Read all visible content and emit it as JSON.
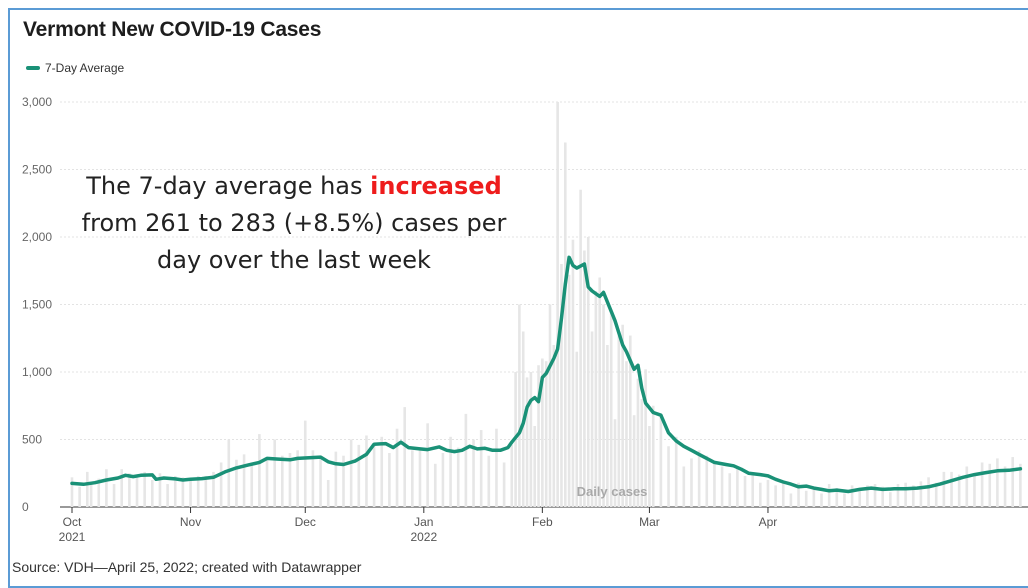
{
  "chart_data": {
    "type": "bar",
    "title": "Vermont New COVID-19 Cases",
    "legend": [
      {
        "name": "7-Day Average",
        "color": "#1a9177"
      }
    ],
    "bar_label": "Daily cases",
    "annotation": {
      "before": "The 7-day average has ",
      "highlight": "increased",
      "after_line1": "",
      "line2": "from 261 to 283 (+8.5%) cases per",
      "line3": "day over the last week",
      "highlight_color": "#ee1c1c"
    },
    "ylim": [
      0,
      3000
    ],
    "yticks": [
      "0",
      "500",
      "1,000",
      "1,500",
      "2,000",
      "2,500",
      "3,000"
    ],
    "ytick_values": [
      0,
      500,
      1000,
      1500,
      2000,
      2500,
      3000
    ],
    "xticks": [
      {
        "day": 0,
        "label": "Oct",
        "sub": "2021"
      },
      {
        "day": 31,
        "label": "Nov",
        "sub": ""
      },
      {
        "day": 61,
        "label": "Dec",
        "sub": ""
      },
      {
        "day": 92,
        "label": "Jan",
        "sub": "2022"
      },
      {
        "day": 123,
        "label": "Feb",
        "sub": ""
      },
      {
        "day": 151,
        "label": "Mar",
        "sub": ""
      },
      {
        "day": 182,
        "label": "Apr",
        "sub": ""
      }
    ],
    "x_start": "2021-10-01",
    "x_end": "2022-04-25",
    "grid": true,
    "series": [
      {
        "name": "7-Day Average",
        "color": "#1a9177",
        "points": [
          [
            0,
            175
          ],
          [
            3,
            168
          ],
          [
            6,
            180
          ],
          [
            9,
            200
          ],
          [
            12,
            215
          ],
          [
            14,
            235
          ],
          [
            16,
            225
          ],
          [
            18,
            235
          ],
          [
            21,
            238
          ],
          [
            22,
            205
          ],
          [
            24,
            215
          ],
          [
            27,
            208
          ],
          [
            29,
            200
          ],
          [
            31,
            205
          ],
          [
            34,
            210
          ],
          [
            37,
            220
          ],
          [
            40,
            260
          ],
          [
            43,
            290
          ],
          [
            46,
            310
          ],
          [
            49,
            330
          ],
          [
            51,
            360
          ],
          [
            54,
            355
          ],
          [
            57,
            350
          ],
          [
            59,
            360
          ],
          [
            62,
            365
          ],
          [
            65,
            370
          ],
          [
            67,
            335
          ],
          [
            69,
            320
          ],
          [
            71,
            315
          ],
          [
            74,
            340
          ],
          [
            77,
            390
          ],
          [
            79,
            465
          ],
          [
            82,
            470
          ],
          [
            84,
            440
          ],
          [
            86,
            480
          ],
          [
            88,
            440
          ],
          [
            91,
            430
          ],
          [
            93,
            425
          ],
          [
            96,
            445
          ],
          [
            98,
            420
          ],
          [
            100,
            410
          ],
          [
            102,
            420
          ],
          [
            104,
            450
          ],
          [
            106,
            430
          ],
          [
            108,
            435
          ],
          [
            110,
            420
          ],
          [
            112,
            420
          ],
          [
            114,
            440
          ],
          [
            115,
            480
          ],
          [
            117,
            550
          ],
          [
            118,
            620
          ],
          [
            119,
            740
          ],
          [
            120,
            790
          ],
          [
            121,
            810
          ],
          [
            122,
            780
          ],
          [
            123,
            960
          ],
          [
            124,
            990
          ],
          [
            126,
            1100
          ],
          [
            127,
            1170
          ],
          [
            128,
            1400
          ],
          [
            129,
            1650
          ],
          [
            130,
            1850
          ],
          [
            131,
            1790
          ],
          [
            132,
            1770
          ],
          [
            134,
            1800
          ],
          [
            135,
            1630
          ],
          [
            136,
            1600
          ],
          [
            138,
            1560
          ],
          [
            139,
            1590
          ],
          [
            141,
            1450
          ],
          [
            142,
            1380
          ],
          [
            144,
            1200
          ],
          [
            145,
            1150
          ],
          [
            147,
            1020
          ],
          [
            148,
            1050
          ],
          [
            149,
            880
          ],
          [
            150,
            770
          ],
          [
            152,
            700
          ],
          [
            154,
            680
          ],
          [
            156,
            550
          ],
          [
            158,
            490
          ],
          [
            160,
            450
          ],
          [
            162,
            420
          ],
          [
            164,
            390
          ],
          [
            166,
            360
          ],
          [
            168,
            330
          ],
          [
            171,
            315
          ],
          [
            173,
            305
          ],
          [
            175,
            280
          ],
          [
            177,
            250
          ],
          [
            180,
            240
          ],
          [
            182,
            230
          ],
          [
            184,
            205
          ],
          [
            186,
            185
          ],
          [
            188,
            170
          ],
          [
            190,
            150
          ],
          [
            192,
            155
          ],
          [
            194,
            140
          ],
          [
            196,
            130
          ],
          [
            198,
            120
          ],
          [
            200,
            125
          ],
          [
            203,
            115
          ],
          [
            206,
            130
          ],
          [
            209,
            140
          ],
          [
            212,
            130
          ],
          [
            215,
            135
          ],
          [
            218,
            135
          ],
          [
            221,
            140
          ],
          [
            224,
            150
          ],
          [
            227,
            170
          ],
          [
            230,
            195
          ],
          [
            233,
            220
          ],
          [
            236,
            240
          ],
          [
            239,
            255
          ],
          [
            242,
            268
          ],
          [
            245,
            272
          ],
          [
            248,
            283
          ]
        ]
      }
    ],
    "bars": [
      {
        "day": 0,
        "value": 220
      },
      {
        "day": 2,
        "value": 150
      },
      {
        "day": 4,
        "value": 260
      },
      {
        "day": 5,
        "value": 180
      },
      {
        "day": 7,
        "value": 210
      },
      {
        "day": 9,
        "value": 280
      },
      {
        "day": 11,
        "value": 170
      },
      {
        "day": 13,
        "value": 280
      },
      {
        "day": 15,
        "value": 250
      },
      {
        "day": 17,
        "value": 240
      },
      {
        "day": 19,
        "value": 260
      },
      {
        "day": 21,
        "value": 200
      },
      {
        "day": 23,
        "value": 250
      },
      {
        "day": 25,
        "value": 170
      },
      {
        "day": 27,
        "value": 230
      },
      {
        "day": 29,
        "value": 220
      },
      {
        "day": 31,
        "value": 210
      },
      {
        "day": 33,
        "value": 230
      },
      {
        "day": 35,
        "value": 230
      },
      {
        "day": 37,
        "value": 260
      },
      {
        "day": 39,
        "value": 330
      },
      {
        "day": 41,
        "value": 500
      },
      {
        "day": 43,
        "value": 350
      },
      {
        "day": 45,
        "value": 390
      },
      {
        "day": 47,
        "value": 330
      },
      {
        "day": 49,
        "value": 540
      },
      {
        "day": 51,
        "value": 360
      },
      {
        "day": 53,
        "value": 500
      },
      {
        "day": 55,
        "value": 380
      },
      {
        "day": 57,
        "value": 400
      },
      {
        "day": 59,
        "value": 420
      },
      {
        "day": 61,
        "value": 640
      },
      {
        "day": 63,
        "value": 420
      },
      {
        "day": 65,
        "value": 380
      },
      {
        "day": 67,
        "value": 200
      },
      {
        "day": 69,
        "value": 410
      },
      {
        "day": 71,
        "value": 380
      },
      {
        "day": 73,
        "value": 500
      },
      {
        "day": 75,
        "value": 460
      },
      {
        "day": 77,
        "value": 530
      },
      {
        "day": 79,
        "value": 470
      },
      {
        "day": 81,
        "value": 520
      },
      {
        "day": 83,
        "value": 400
      },
      {
        "day": 85,
        "value": 580
      },
      {
        "day": 87,
        "value": 740
      },
      {
        "day": 89,
        "value": 420
      },
      {
        "day": 91,
        "value": 430
      },
      {
        "day": 93,
        "value": 620
      },
      {
        "day": 95,
        "value": 320
      },
      {
        "day": 97,
        "value": 400
      },
      {
        "day": 99,
        "value": 520
      },
      {
        "day": 101,
        "value": 440
      },
      {
        "day": 103,
        "value": 690
      },
      {
        "day": 105,
        "value": 500
      },
      {
        "day": 107,
        "value": 570
      },
      {
        "day": 109,
        "value": 380
      },
      {
        "day": 111,
        "value": 580
      },
      {
        "day": 113,
        "value": 330
      },
      {
        "day": 115,
        "value": 460
      },
      {
        "day": 116,
        "value": 1000
      },
      {
        "day": 117,
        "value": 1500
      },
      {
        "day": 118,
        "value": 1300
      },
      {
        "day": 119,
        "value": 960
      },
      {
        "day": 120,
        "value": 1000
      },
      {
        "day": 121,
        "value": 600
      },
      {
        "day": 122,
        "value": 1050
      },
      {
        "day": 123,
        "value": 1100
      },
      {
        "day": 124,
        "value": 1080
      },
      {
        "day": 125,
        "value": 1500
      },
      {
        "day": 126,
        "value": 1200
      },
      {
        "day": 127,
        "value": 3000
      },
      {
        "day": 128,
        "value": 1800
      },
      {
        "day": 129,
        "value": 2700
      },
      {
        "day": 130,
        "value": 1720
      },
      {
        "day": 131,
        "value": 1980
      },
      {
        "day": 132,
        "value": 1150
      },
      {
        "day": 133,
        "value": 2350
      },
      {
        "day": 134,
        "value": 1900
      },
      {
        "day": 135,
        "value": 2000
      },
      {
        "day": 136,
        "value": 1300
      },
      {
        "day": 137,
        "value": 1600
      },
      {
        "day": 138,
        "value": 1700
      },
      {
        "day": 139,
        "value": 1500
      },
      {
        "day": 140,
        "value": 1200
      },
      {
        "day": 141,
        "value": 1450
      },
      {
        "day": 142,
        "value": 650
      },
      {
        "day": 143,
        "value": 1270
      },
      {
        "day": 144,
        "value": 1350
      },
      {
        "day": 145,
        "value": 1080
      },
      {
        "day": 146,
        "value": 1270
      },
      {
        "day": 147,
        "value": 680
      },
      {
        "day": 148,
        "value": 950
      },
      {
        "day": 149,
        "value": 800
      },
      {
        "day": 150,
        "value": 1020
      },
      {
        "day": 151,
        "value": 600
      },
      {
        "day": 152,
        "value": 750
      },
      {
        "day": 154,
        "value": 670
      },
      {
        "day": 156,
        "value": 450
      },
      {
        "day": 158,
        "value": 520
      },
      {
        "day": 160,
        "value": 300
      },
      {
        "day": 162,
        "value": 360
      },
      {
        "day": 164,
        "value": 420
      },
      {
        "day": 166,
        "value": 380
      },
      {
        "day": 168,
        "value": 330
      },
      {
        "day": 170,
        "value": 300
      },
      {
        "day": 172,
        "value": 250
      },
      {
        "day": 174,
        "value": 300
      },
      {
        "day": 176,
        "value": 230
      },
      {
        "day": 178,
        "value": 250
      },
      {
        "day": 180,
        "value": 180
      },
      {
        "day": 182,
        "value": 200
      },
      {
        "day": 184,
        "value": 160
      },
      {
        "day": 186,
        "value": 190
      },
      {
        "day": 188,
        "value": 100
      },
      {
        "day": 190,
        "value": 180
      },
      {
        "day": 192,
        "value": 120
      },
      {
        "day": 194,
        "value": 150
      },
      {
        "day": 196,
        "value": 100
      },
      {
        "day": 198,
        "value": 170
      },
      {
        "day": 200,
        "value": 140
      },
      {
        "day": 202,
        "value": 100
      },
      {
        "day": 204,
        "value": 160
      },
      {
        "day": 206,
        "value": 120
      },
      {
        "day": 208,
        "value": 160
      },
      {
        "day": 210,
        "value": 170
      },
      {
        "day": 212,
        "value": 150
      },
      {
        "day": 214,
        "value": 110
      },
      {
        "day": 216,
        "value": 170
      },
      {
        "day": 218,
        "value": 180
      },
      {
        "day": 220,
        "value": 160
      },
      {
        "day": 222,
        "value": 190
      },
      {
        "day": 224,
        "value": 220
      },
      {
        "day": 226,
        "value": 180
      },
      {
        "day": 228,
        "value": 260
      },
      {
        "day": 230,
        "value": 260
      },
      {
        "day": 232,
        "value": 240
      },
      {
        "day": 234,
        "value": 300
      },
      {
        "day": 236,
        "value": 250
      },
      {
        "day": 238,
        "value": 330
      },
      {
        "day": 240,
        "value": 320
      },
      {
        "day": 242,
        "value": 360
      },
      {
        "day": 244,
        "value": 300
      },
      {
        "day": 246,
        "value": 370
      },
      {
        "day": 248,
        "value": 320
      }
    ]
  },
  "footer": {
    "source": "Source: VDH—April 25, 2022; created with Datawrapper"
  }
}
